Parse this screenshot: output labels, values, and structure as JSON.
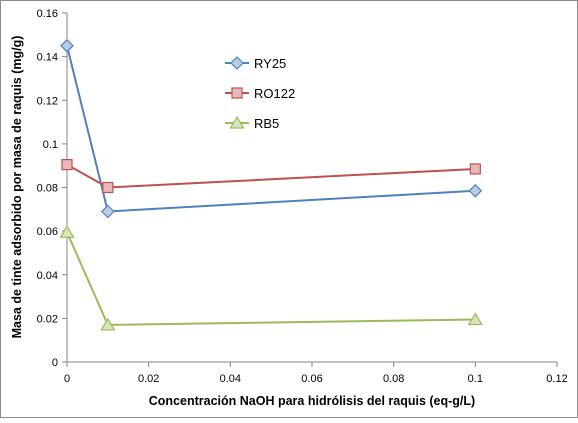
{
  "chart_data": {
    "type": "line",
    "title": "",
    "xlabel": "Concentración NaOH para hidrólisis  del raquis (eq-g/L)",
    "ylabel": "Masa de tinte adsorbido por masa de raquis (mg/g)",
    "xlim": [
      0,
      0.12
    ],
    "ylim": [
      0,
      0.16
    ],
    "xticks": [
      "0",
      "0.02",
      "0.04",
      "0.06",
      "0.08",
      "0.1",
      "0.12"
    ],
    "yticks": [
      "0",
      "0.02",
      "0.04",
      "0.06",
      "0.08",
      "0.1",
      "0.12",
      "0.14",
      "0.16"
    ],
    "grid": false,
    "legend_position": "top-center",
    "x": [
      0,
      0.01,
      0.1
    ],
    "series": [
      {
        "name": "RY25",
        "values": [
          0.145,
          0.069,
          0.0785
        ],
        "color": "#4f81bd",
        "fill": "#b9cde5",
        "marker": "diamond"
      },
      {
        "name": "RO122",
        "values": [
          0.0905,
          0.08,
          0.0885
        ],
        "color": "#c0504d",
        "fill": "#e6b9b8",
        "marker": "square"
      },
      {
        "name": "RB5",
        "values": [
          0.0595,
          0.017,
          0.0195
        ],
        "color": "#9bbb59",
        "fill": "#d7e4bd",
        "marker": "triangle"
      }
    ]
  }
}
